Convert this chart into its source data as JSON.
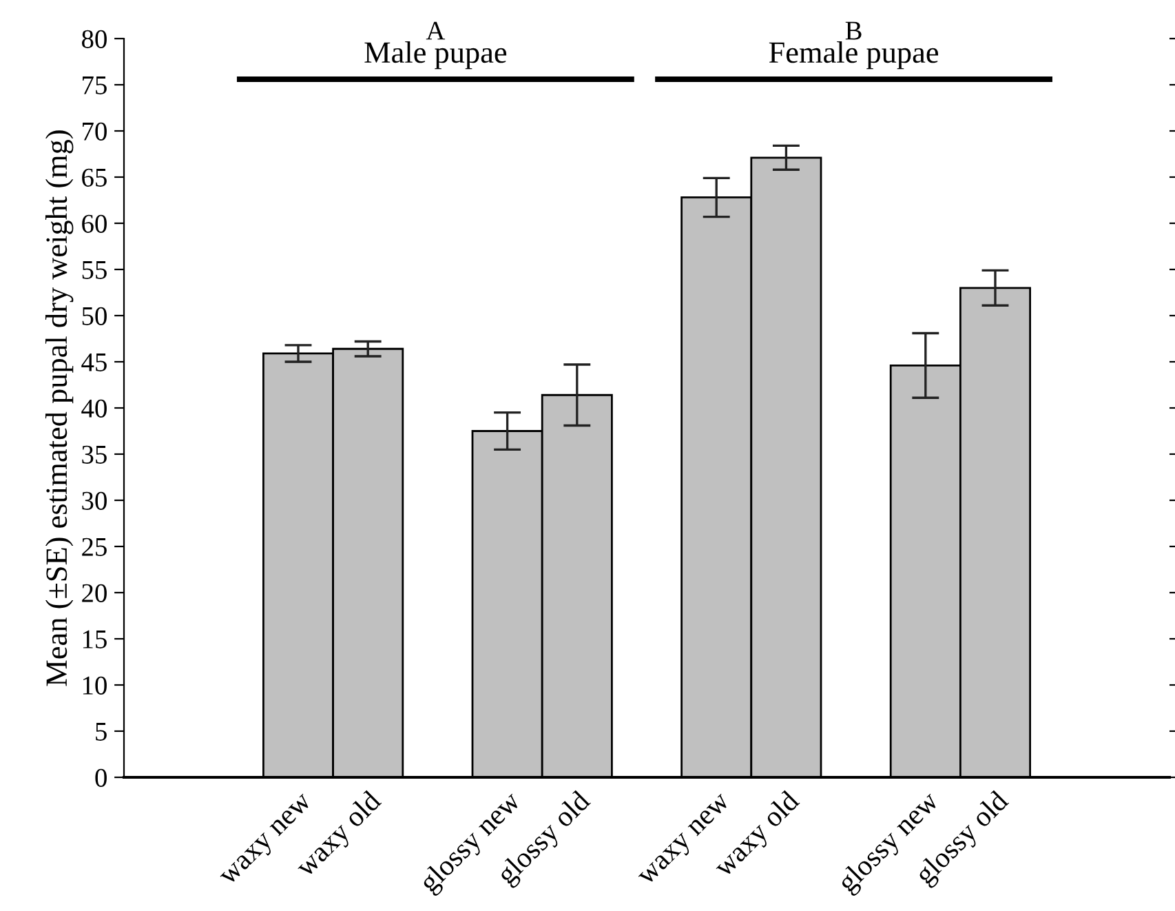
{
  "chart_data": {
    "type": "bar",
    "ylabel": "Mean (±SE) estimated pupal dry weight (mg)",
    "categories": [
      null,
      null,
      "waxy new",
      "waxy old",
      null,
      "glossy new",
      "glossy old",
      null,
      "waxy new",
      "waxy old",
      null,
      "glossy new",
      "glossy old",
      null,
      null
    ],
    "values": [
      null,
      null,
      45.9,
      46.4,
      null,
      37.5,
      41.4,
      null,
      62.8,
      67.1,
      null,
      44.6,
      53.0,
      null,
      null
    ],
    "errors": [
      null,
      null,
      0.9,
      0.8,
      null,
      2.0,
      3.3,
      null,
      2.1,
      1.3,
      null,
      3.5,
      1.9,
      null,
      null
    ],
    "color": "#c0c0c0",
    "ylim": [
      0,
      80
    ],
    "yticks": [
      0,
      5,
      10,
      15,
      20,
      25,
      30,
      35,
      40,
      45,
      50,
      55,
      60,
      65,
      70,
      75,
      80
    ],
    "annotations": [
      "A",
      "Male pupae",
      "B",
      "Female pupae"
    ],
    "grid": false,
    "legend": false
  }
}
